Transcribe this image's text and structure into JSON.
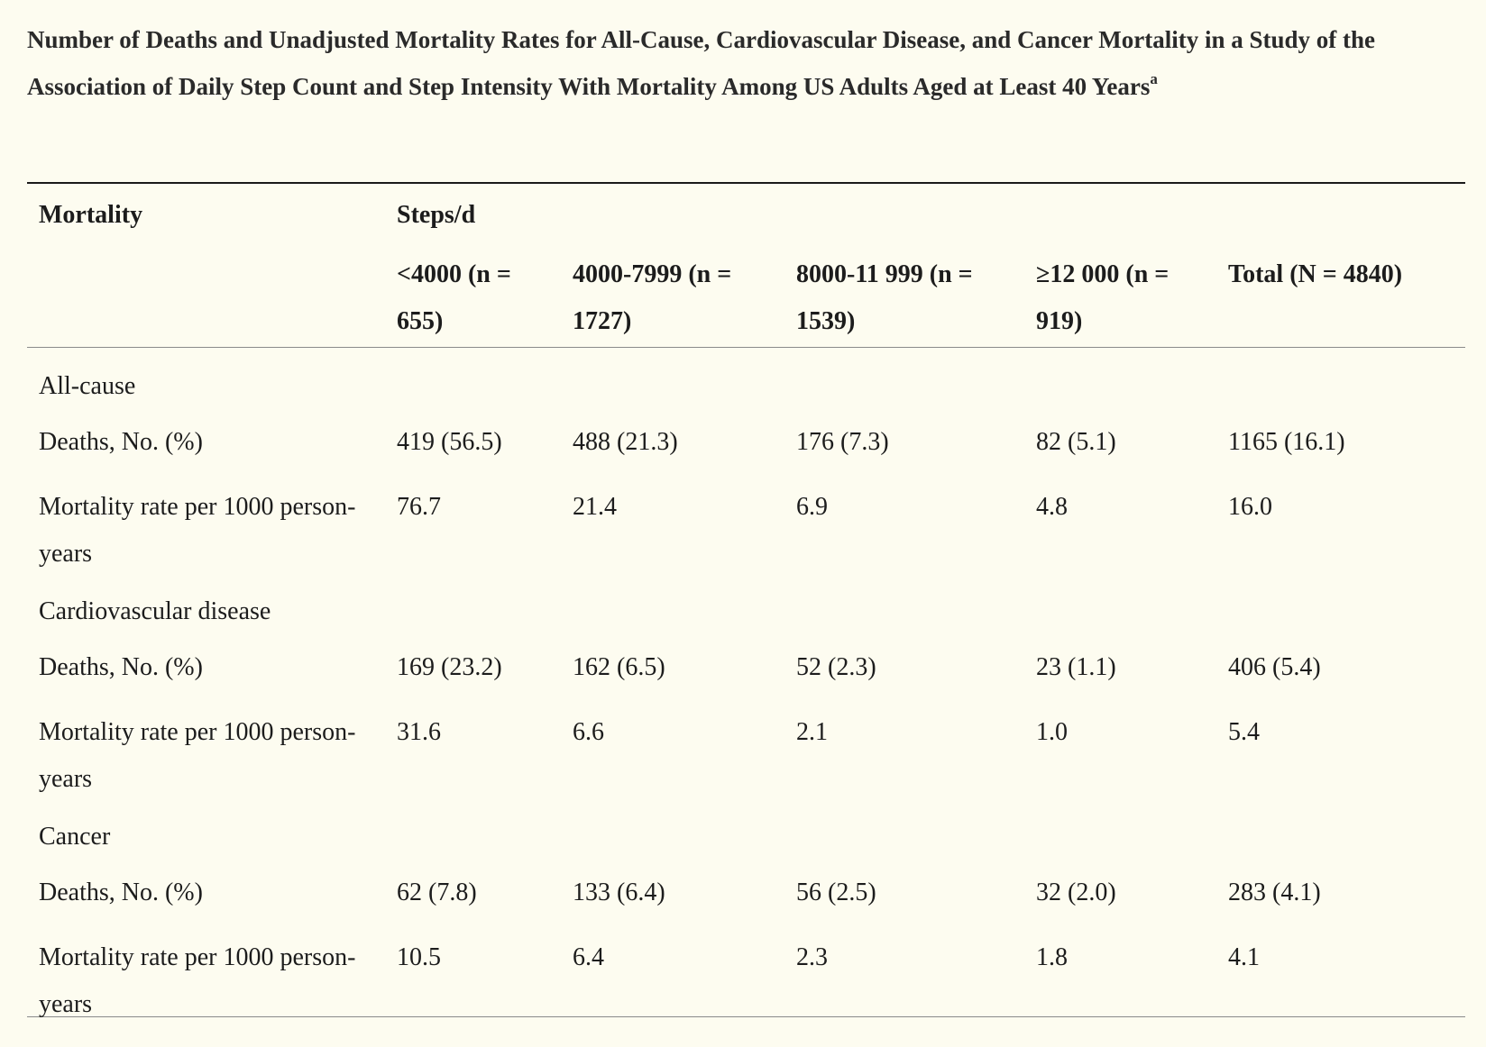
{
  "title": "Number of Deaths and Unadjusted Mortality Rates for All-Cause, Cardiovascular Disease, and Cancer Mortality in a Study of the Association of Daily Step Count and Step Intensity With Mortality Among US Adults Aged at Least 40 Years",
  "title_footnote": "a",
  "table": {
    "header": {
      "row_label": "Mortality",
      "group_label": "Steps/d",
      "columns": [
        "<4000 (n = 655)",
        "4000-7999 (n = 1727)",
        "8000-11 999 (n = 1539)",
        "≥12 000 (n = 919)",
        "Total (N = 4840)"
      ]
    },
    "sections": [
      {
        "label": "All-cause",
        "rows": [
          {
            "label": "Deaths, No. (%)",
            "values": [
              "419 (56.5)",
              "488 (21.3)",
              "176 (7.3)",
              "82 (5.1)",
              "1165 (16.1)"
            ]
          },
          {
            "label": "Mortality rate per 1000 person-years",
            "values": [
              "76.7",
              "21.4",
              "6.9",
              "4.8",
              "16.0"
            ]
          }
        ]
      },
      {
        "label": "Cardiovascular disease",
        "rows": [
          {
            "label": "Deaths, No. (%)",
            "values": [
              "169 (23.2)",
              "162 (6.5)",
              "52 (2.3)",
              "23 (1.1)",
              "406 (5.4)"
            ]
          },
          {
            "label": "Mortality rate per 1000 person-years",
            "values": [
              "31.6",
              "6.6",
              "2.1",
              "1.0",
              "5.4"
            ]
          }
        ]
      },
      {
        "label": "Cancer",
        "rows": [
          {
            "label": "Deaths, No. (%)",
            "values": [
              "62 (7.8)",
              "133 (6.4)",
              "56 (2.5)",
              "32 (2.0)",
              "283 (4.1)"
            ]
          },
          {
            "label": "Mortality rate per 1000 person-years",
            "values": [
              "10.5",
              "6.4",
              "2.3",
              "1.8",
              "4.1"
            ]
          }
        ]
      }
    ]
  }
}
